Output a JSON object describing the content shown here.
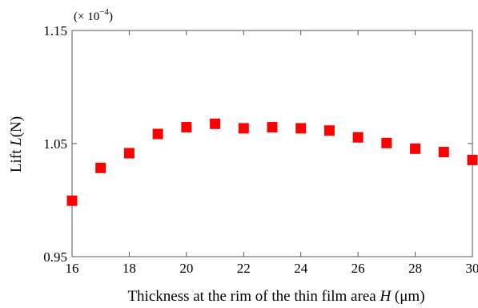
{
  "chart_data": {
    "type": "scatter",
    "title": "",
    "xlabel_prefix": "Thickness at the rim of the thin film area ",
    "xlabel_var": "H",
    "xlabel_unit": " (μm)",
    "ylabel_prefix": "Lift ",
    "ylabel_var": "L",
    "ylabel_unit": "(N)",
    "y_multiplier_prefix": "(× 10",
    "y_multiplier_exp": "−4",
    "y_multiplier_suffix": ")",
    "xlim": [
      16,
      30
    ],
    "ylim": [
      0.95,
      1.15
    ],
    "xticks": [
      16,
      18,
      20,
      22,
      24,
      26,
      28,
      30
    ],
    "yticks": [
      0.95,
      1.05,
      1.15
    ],
    "yticklabels": [
      "0.95",
      "1.05",
      "1.15"
    ],
    "grid": false,
    "marker": "square",
    "series": [
      {
        "color": "#ff0000",
        "x": [
          16,
          17,
          18,
          19,
          20,
          21,
          22,
          23,
          24,
          25,
          26,
          27,
          28,
          29,
          30
        ],
        "y": [
          0.9995,
          1.0285,
          1.0415,
          1.0585,
          1.0645,
          1.0675,
          1.0635,
          1.0645,
          1.0635,
          1.0615,
          1.0555,
          1.0505,
          1.0455,
          1.0425,
          1.0355
        ]
      }
    ]
  }
}
